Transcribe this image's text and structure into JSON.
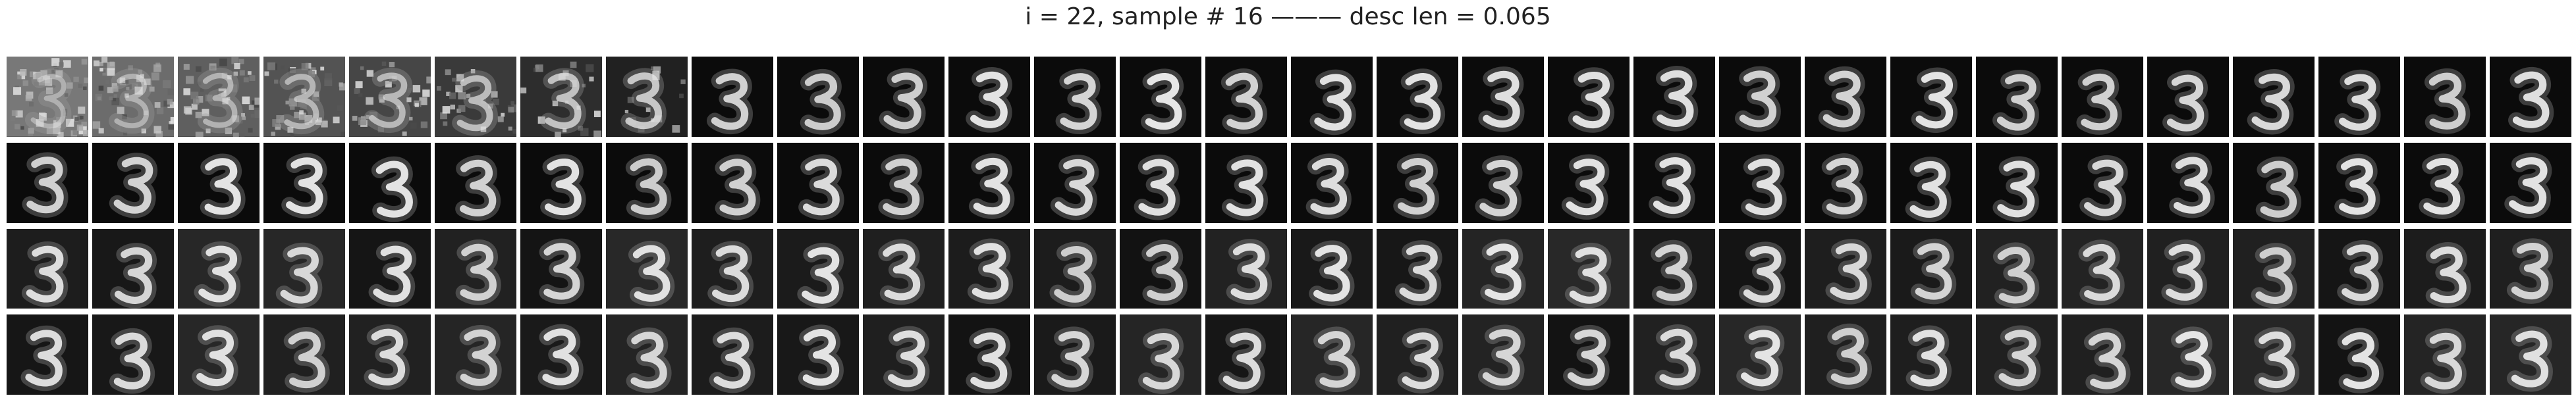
{
  "figure": {
    "title": "i = 22, sample # 16 ——— desc len = 0.065"
  },
  "grid": {
    "rows": 4,
    "columns": 30,
    "digit_shown": "3",
    "colormap": "grayscale",
    "background_color": "#0b0b0b",
    "stroke_color": "#e6e6e6",
    "first_row_noisy_frames": 8
  }
}
